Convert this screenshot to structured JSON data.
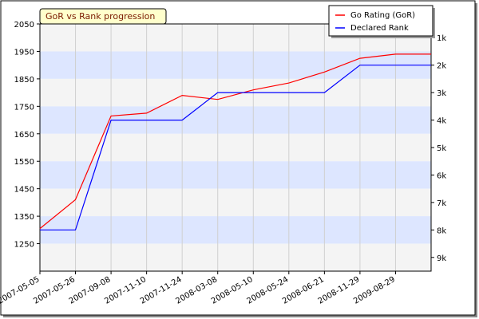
{
  "chart_data": {
    "type": "line",
    "title": "GoR vs Rank progression",
    "categories": [
      "2007-05-05",
      "2007-05-26",
      "2007-09-08",
      "2007-11-10",
      "2007-11-24",
      "2008-03-08",
      "2008-05-10",
      "2008-05-24",
      "2008-06-21",
      "2008-11-29",
      "2009-08-29"
    ],
    "series": [
      {
        "name": "Go Rating (GoR)",
        "axis": "left",
        "color": "#ff0000",
        "values": [
          1305,
          1410,
          1715,
          1725,
          1790,
          1775,
          1810,
          1835,
          1875,
          1925,
          1940
        ]
      },
      {
        "name": "Declared Rank",
        "axis": "right",
        "color": "#0000ff",
        "values": [
          "8k",
          "8k",
          "4k",
          "4k",
          "4k",
          "3k",
          "3k",
          "3k",
          "3k",
          "2k",
          "2k"
        ]
      }
    ],
    "y_left": {
      "ylim": [
        1150,
        2050
      ],
      "ticks": [
        2050,
        1950,
        1850,
        1750,
        1650,
        1550,
        1450,
        1350,
        1250
      ]
    },
    "y_right": {
      "ticks": [
        "1k",
        "2k",
        "3k",
        "4k",
        "5k",
        "6k",
        "7k",
        "8k",
        "9k"
      ]
    },
    "legend": {
      "placement": "top-right"
    },
    "band_color": "#dde6ff",
    "grid": true
  }
}
